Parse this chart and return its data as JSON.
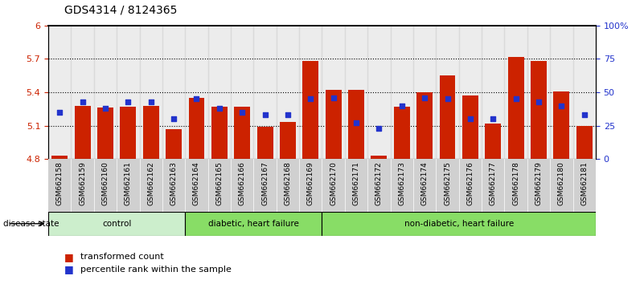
{
  "title": "GDS4314 / 8124365",
  "samples": [
    "GSM662158",
    "GSM662159",
    "GSM662160",
    "GSM662161",
    "GSM662162",
    "GSM662163",
    "GSM662164",
    "GSM662165",
    "GSM662166",
    "GSM662167",
    "GSM662168",
    "GSM662169",
    "GSM662170",
    "GSM662171",
    "GSM662172",
    "GSM662173",
    "GSM662174",
    "GSM662175",
    "GSM662176",
    "GSM662177",
    "GSM662178",
    "GSM662179",
    "GSM662180",
    "GSM662181"
  ],
  "transformed_count": [
    4.83,
    5.28,
    5.26,
    5.27,
    5.28,
    5.07,
    5.35,
    5.27,
    5.27,
    5.09,
    5.13,
    5.68,
    5.42,
    5.42,
    4.83,
    5.27,
    5.4,
    5.55,
    5.37,
    5.12,
    5.72,
    5.68,
    5.41,
    5.1
  ],
  "percentile_rank": [
    35,
    43,
    38,
    43,
    43,
    30,
    45,
    38,
    35,
    33,
    33,
    45,
    46,
    27,
    23,
    40,
    46,
    45,
    30,
    30,
    45,
    43,
    40,
    33
  ],
  "bar_color": "#cc2200",
  "dot_color": "#2233cc",
  "ylim_left": [
    4.8,
    6.0
  ],
  "ylim_right": [
    0,
    100
  ],
  "yticks_left": [
    4.8,
    5.1,
    5.4,
    5.7,
    6.0
  ],
  "ytick_labels_left": [
    "4.8",
    "5.1",
    "5.4",
    "5.7",
    "6"
  ],
  "yticks_right": [
    0,
    25,
    50,
    75,
    100
  ],
  "ytick_labels_right": [
    "0",
    "25",
    "50",
    "75",
    "100%"
  ],
  "grid_lines": [
    5.1,
    5.4,
    5.7
  ],
  "legend_items": [
    "transformed count",
    "percentile rank within the sample"
  ],
  "title_fontsize": 10,
  "axis_label_color_left": "#cc2200",
  "axis_label_color_right": "#2233cc",
  "group_data": [
    {
      "label": "control",
      "start": 0,
      "end": 5,
      "color": "#cceecc"
    },
    {
      "label": "diabetic, heart failure",
      "start": 6,
      "end": 11,
      "color": "#88dd66"
    },
    {
      "label": "non-diabetic, heart failure",
      "start": 12,
      "end": 23,
      "color": "#88dd66"
    }
  ],
  "sample_bg_color": "#d0d0d0",
  "plot_bg_color": "#ffffff"
}
